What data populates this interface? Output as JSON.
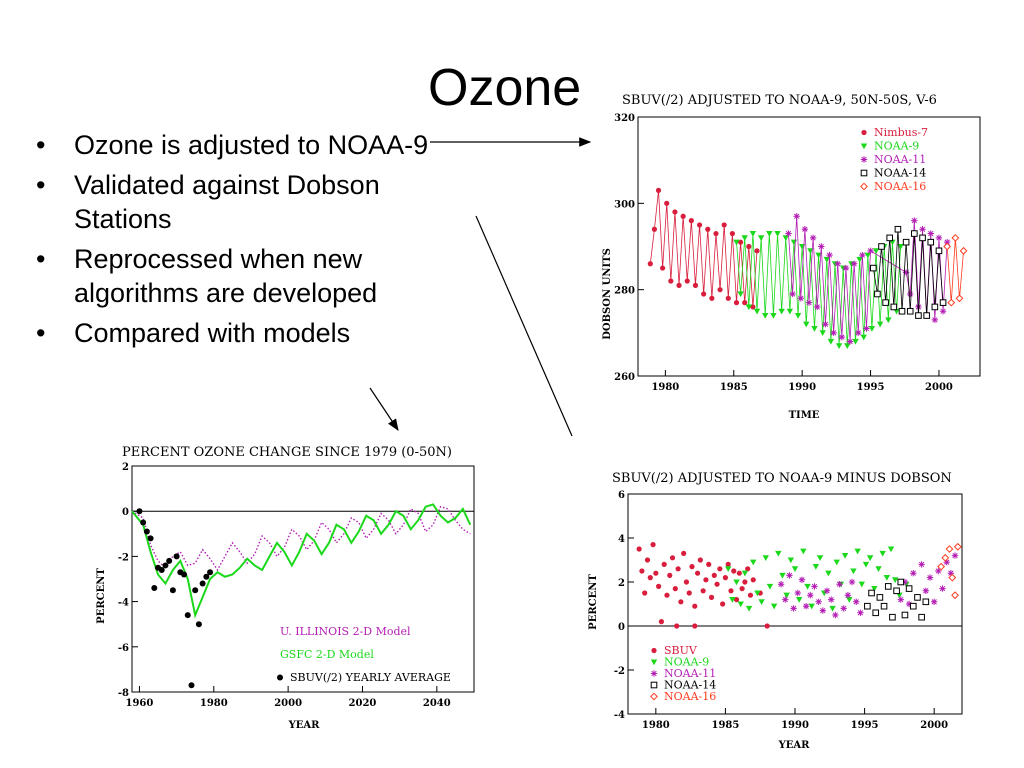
{
  "slide": {
    "title": "Ozone",
    "bullets": [
      "Ozone is adjusted to NOAA-9",
      "Validated against  Dobson Stations",
      "Reprocessed when new algorithms are developed",
      "Compared with models"
    ],
    "bullet_glyph": "•"
  },
  "colors": {
    "nimbus7": "#d81e3c",
    "noaa9": "#1bd81b",
    "noaa11": "#b41eb4",
    "noaa14": "#000000",
    "noaa16": "#ff3b1f",
    "illinois": "#b41eb4",
    "gsfc": "#1bd81b"
  },
  "chart_data": [
    {
      "id": "top",
      "type": "line",
      "title": "SBUV(/2) ADJUSTED TO NOAA-9, 50N-50S, V-6",
      "xlabel": "TIME",
      "ylabel": "DOBSON UNITS",
      "xlim": [
        1978,
        2003
      ],
      "ylim": [
        260,
        320
      ],
      "xticks": [
        1980,
        1985,
        1990,
        1995,
        2000
      ],
      "yticks": [
        260,
        280,
        300,
        320
      ],
      "legend_position": "top-right",
      "series": [
        {
          "name": "Nimbus-7",
          "color": "#d81e3c",
          "marker": "circle",
          "x": [
            1978.9,
            1979.2,
            1979.5,
            1979.8,
            1980.1,
            1980.4,
            1980.7,
            1981.0,
            1981.3,
            1981.6,
            1981.9,
            1982.2,
            1982.5,
            1982.8,
            1983.1,
            1983.4,
            1983.7,
            1984.0,
            1984.3,
            1984.6,
            1984.9,
            1985.2,
            1985.5,
            1985.8,
            1986.1,
            1986.4,
            1986.7
          ],
          "y": [
            286,
            294,
            303,
            285,
            300,
            282,
            298,
            281,
            297,
            282,
            296,
            281,
            295,
            279,
            294,
            278,
            293,
            280,
            295,
            278,
            293,
            277,
            291,
            277,
            290,
            276,
            289
          ]
        },
        {
          "name": "NOAA-9",
          "color": "#1bd81b",
          "marker": "triangle",
          "x": [
            1985.2,
            1985.5,
            1985.8,
            1986.1,
            1986.4,
            1986.7,
            1987.0,
            1987.3,
            1987.6,
            1987.9,
            1988.2,
            1988.5,
            1988.8,
            1989.1,
            1989.4,
            1989.7,
            1990.0,
            1990.3,
            1990.6,
            1990.9,
            1991.2,
            1991.5,
            1991.8,
            1992.1,
            1992.4,
            1992.7,
            1993.0,
            1993.3,
            1993.6,
            1993.9,
            1994.2,
            1994.5,
            1994.8,
            1995.1,
            1995.4,
            1995.7,
            1996.0,
            1996.3,
            1996.6,
            1996.9,
            1997.2
          ],
          "y": [
            291,
            279,
            292,
            276,
            293,
            275,
            292,
            274,
            293,
            274,
            293,
            275,
            292,
            275,
            291,
            274,
            290,
            272,
            289,
            271,
            288,
            270,
            287,
            268,
            286,
            267,
            285,
            267,
            286,
            268,
            287,
            269,
            288,
            271,
            289,
            272,
            290,
            273,
            291,
            275,
            290
          ]
        },
        {
          "name": "NOAA-11",
          "color": "#b41eb4",
          "marker": "asterisk",
          "x": [
            1989.0,
            1989.3,
            1989.6,
            1989.9,
            1990.2,
            1990.5,
            1990.8,
            1991.1,
            1991.4,
            1991.7,
            1992.0,
            1992.3,
            1992.6,
            1992.9,
            1993.2,
            1993.5,
            1993.8,
            1994.1,
            1994.4,
            1994.7,
            1995.0,
            1997.6,
            1997.9,
            1998.2,
            1998.5,
            1998.8,
            1999.1,
            1999.4,
            1999.7,
            2000.0,
            2000.3,
            2000.6
          ],
          "y": [
            293,
            279,
            297,
            278,
            294,
            277,
            292,
            276,
            290,
            272,
            288,
            270,
            286,
            269,
            285,
            268,
            286,
            270,
            288,
            271,
            289,
            284,
            279,
            296,
            276,
            294,
            274,
            293,
            273,
            292,
            275,
            291
          ]
        },
        {
          "name": "NOAA-14",
          "color": "#000000",
          "marker": "square",
          "x": [
            1995.2,
            1995.5,
            1995.8,
            1996.1,
            1996.4,
            1996.7,
            1997.0,
            1997.3,
            1997.6,
            1997.9,
            1998.2,
            1998.5,
            1998.8,
            1999.1,
            1999.4,
            1999.7,
            2000.0,
            2000.3
          ],
          "y": [
            285,
            279,
            290,
            277,
            292,
            276,
            294,
            275,
            291,
            275,
            293,
            274,
            292,
            274,
            291,
            276,
            289,
            277
          ]
        },
        {
          "name": "NOAA-16",
          "color": "#ff3b1f",
          "marker": "diamond",
          "x": [
            2000.6,
            2000.9,
            2001.2,
            2001.5,
            2001.8
          ],
          "y": [
            290,
            277,
            292,
            278,
            289
          ]
        }
      ]
    },
    {
      "id": "bottom-right",
      "type": "scatter",
      "title": "SBUV(/2) ADJUSTED TO NOAA-9 MINUS DOBSON",
      "xlabel": "YEAR",
      "ylabel": "PERCENT",
      "xlim": [
        1978,
        2002
      ],
      "ylim": [
        -4,
        6
      ],
      "xticks": [
        1980,
        1985,
        1990,
        1995,
        2000
      ],
      "yticks": [
        -4,
        -2,
        0,
        2,
        4,
        6
      ],
      "legend_position": "bottom-left",
      "series": [
        {
          "name": "SBUV",
          "color": "#d81e3c",
          "marker": "circle",
          "x": [
            1978.8,
            1979.0,
            1979.2,
            1979.4,
            1979.6,
            1979.8,
            1980.0,
            1980.2,
            1980.4,
            1980.6,
            1980.8,
            1981.0,
            1981.2,
            1981.4,
            1981.6,
            1981.8,
            1982.0,
            1982.2,
            1982.4,
            1982.6,
            1982.8,
            1983.0,
            1983.2,
            1983.4,
            1983.6,
            1983.8,
            1984.0,
            1984.2,
            1984.4,
            1984.6,
            1984.8,
            1985.0,
            1985.2,
            1985.4,
            1985.6,
            1985.8,
            1986.0,
            1986.2,
            1986.4,
            1986.6,
            1986.8,
            1987.0,
            1987.5,
            1988.0,
            1981.5,
            1982.8
          ],
          "y": [
            3.5,
            2.5,
            1.5,
            3.0,
            2.2,
            3.7,
            2.4,
            1.8,
            0.2,
            2.8,
            1.4,
            2.3,
            3.1,
            1.7,
            2.6,
            1.1,
            3.3,
            2.0,
            1.5,
            2.7,
            0.9,
            2.4,
            3.0,
            1.6,
            2.1,
            2.8,
            1.3,
            2.3,
            1.9,
            2.6,
            1.0,
            2.2,
            2.8,
            1.6,
            2.5,
            1.2,
            2.4,
            1.7,
            2.0,
            2.6,
            1.4,
            2.1,
            1.5,
            0.0,
            0.0,
            0.0
          ]
        },
        {
          "name": "NOAA-9",
          "color": "#1bd81b",
          "marker": "triangle",
          "x": [
            1985.2,
            1985.5,
            1985.8,
            1986.1,
            1986.4,
            1986.7,
            1987.0,
            1987.3,
            1987.6,
            1987.9,
            1988.2,
            1988.5,
            1988.8,
            1989.1,
            1989.4,
            1989.7,
            1990.0,
            1990.3,
            1990.6,
            1990.9,
            1991.2,
            1991.5,
            1991.8,
            1992.1,
            1992.4,
            1992.7,
            1993.0,
            1993.3,
            1993.6,
            1993.9,
            1994.2,
            1994.5,
            1994.8,
            1995.1,
            1995.4,
            1995.7,
            1996.0,
            1996.3,
            1996.6,
            1996.9,
            1997.2,
            1997.5,
            1998.0
          ],
          "y": [
            2.6,
            1.2,
            2.0,
            1.0,
            2.4,
            0.8,
            2.9,
            1.5,
            1.1,
            3.1,
            1.8,
            0.9,
            3.3,
            2.3,
            1.4,
            3.0,
            2.6,
            1.2,
            3.4,
            1.8,
            0.9,
            2.7,
            3.1,
            1.5,
            2.4,
            0.8,
            2.9,
            1.9,
            3.2,
            1.2,
            2.5,
            3.4,
            1.9,
            2.8,
            3.1,
            1.7,
            2.6,
            3.3,
            2.2,
            3.5,
            2.1,
            1.4,
            1.9
          ]
        },
        {
          "name": "NOAA-11",
          "color": "#b41eb4",
          "marker": "asterisk",
          "x": [
            1989.0,
            1989.3,
            1989.6,
            1989.9,
            1990.2,
            1990.5,
            1990.8,
            1991.1,
            1991.4,
            1991.7,
            1992.0,
            1992.3,
            1992.6,
            1992.9,
            1993.2,
            1993.5,
            1993.8,
            1994.1,
            1994.4,
            1994.7,
            1997.6,
            1997.9,
            1998.2,
            1998.5,
            1998.8,
            1999.1,
            1999.4,
            1999.7,
            2000.0,
            2000.3,
            2000.6,
            2000.9,
            2001.2,
            2001.5
          ],
          "y": [
            1.9,
            1.2,
            2.3,
            0.8,
            1.5,
            2.1,
            0.9,
            1.4,
            1.8,
            1.1,
            0.7,
            1.6,
            1.2,
            0.5,
            1.9,
            0.8,
            1.4,
            2.0,
            1.1,
            0.6,
            1.2,
            2.0,
            1.0,
            2.4,
            1.3,
            2.8,
            1.6,
            2.2,
            1.1,
            2.5,
            1.7,
            2.9,
            2.4,
            3.2
          ]
        },
        {
          "name": "NOAA-14",
          "color": "#000000",
          "marker": "square",
          "x": [
            1995.2,
            1995.5,
            1995.8,
            1996.1,
            1996.4,
            1996.7,
            1997.0,
            1997.3,
            1997.6,
            1997.9,
            1998.2,
            1998.5,
            1998.8,
            1999.1,
            1999.4
          ],
          "y": [
            0.9,
            1.5,
            0.6,
            1.3,
            0.9,
            1.8,
            0.4,
            1.6,
            2.0,
            0.5,
            1.7,
            0.9,
            1.3,
            0.4,
            1.1
          ]
        },
        {
          "name": "NOAA-16",
          "color": "#ff3b1f",
          "marker": "diamond",
          "x": [
            2000.5,
            2000.8,
            2001.1,
            2001.3,
            2001.5,
            2001.7
          ],
          "y": [
            2.7,
            3.1,
            3.5,
            2.2,
            1.4,
            3.6
          ]
        }
      ]
    },
    {
      "id": "bottom-left",
      "type": "line",
      "title": "PERCENT OZONE CHANGE SINCE 1979 (0-50N)",
      "xlabel": "YEAR",
      "ylabel": "PERCENT",
      "xlim": [
        1958,
        2050
      ],
      "ylim": [
        -8,
        2
      ],
      "xticks": [
        1960,
        1980,
        2000,
        2020,
        2040
      ],
      "yticks": [
        -8,
        -6,
        -4,
        -2,
        0,
        2
      ],
      "legend_position": "bottom-right",
      "series": [
        {
          "name": "U. ILLINOIS 2-D Model",
          "color": "#b41eb4",
          "style": "dotted",
          "x": [
            1958,
            1961,
            1963,
            1965,
            1967,
            1969,
            1971,
            1973,
            1975,
            1977,
            1979,
            1981,
            1983,
            1985,
            1987,
            1989,
            1991,
            1993,
            1995,
            1997,
            1999,
            2001,
            2003,
            2005,
            2007,
            2009,
            2011,
            2013,
            2015,
            2017,
            2019,
            2021,
            2023,
            2025,
            2027,
            2029,
            2031,
            2033,
            2035,
            2037,
            2039,
            2041,
            2043,
            2045,
            2047,
            2049
          ],
          "y": [
            0.0,
            -0.3,
            -1.5,
            -2.2,
            -2.5,
            -2.0,
            -1.8,
            -2.4,
            -2.3,
            -1.7,
            -2.1,
            -2.6,
            -2.0,
            -1.4,
            -1.8,
            -2.3,
            -1.9,
            -1.1,
            -1.4,
            -2.0,
            -1.6,
            -0.8,
            -1.1,
            -1.7,
            -1.3,
            -0.5,
            -0.8,
            -1.4,
            -1.0,
            -0.3,
            -0.5,
            -1.2,
            -0.8,
            -0.1,
            -0.4,
            -1.0,
            -0.6,
            0.1,
            -0.1,
            -0.9,
            -0.6,
            0.2,
            0.1,
            -0.4,
            -0.8,
            -1.0
          ]
        },
        {
          "name": "GSFC 2-D Model",
          "color": "#1bd81b",
          "style": "solid",
          "x": [
            1958,
            1961,
            1963,
            1965,
            1967,
            1969,
            1971,
            1973,
            1975,
            1977,
            1979,
            1981,
            1983,
            1985,
            1987,
            1989,
            1991,
            1993,
            1995,
            1997,
            1999,
            2001,
            2003,
            2005,
            2007,
            2009,
            2011,
            2013,
            2015,
            2017,
            2019,
            2021,
            2023,
            2025,
            2027,
            2029,
            2031,
            2033,
            2035,
            2037,
            2039,
            2041,
            2043,
            2045,
            2047,
            2049
          ],
          "y": [
            0.0,
            -0.6,
            -1.8,
            -2.8,
            -3.2,
            -2.6,
            -2.2,
            -3.0,
            -4.6,
            -3.8,
            -3.0,
            -2.7,
            -2.9,
            -2.8,
            -2.5,
            -2.1,
            -2.4,
            -2.6,
            -2.0,
            -1.4,
            -1.8,
            -2.4,
            -1.8,
            -1.0,
            -1.3,
            -1.9,
            -1.4,
            -0.6,
            -0.8,
            -1.4,
            -0.9,
            -0.2,
            -0.4,
            -1.0,
            -0.6,
            0.0,
            -0.2,
            -0.8,
            -0.4,
            0.2,
            0.3,
            -0.2,
            -0.5,
            -0.3,
            0.1,
            -0.6
          ]
        },
        {
          "name": "SBUV(/2) YEARLY AVERAGE",
          "color": "#000000",
          "style": "points",
          "x": [
            1960,
            1961,
            1962,
            1963,
            1964,
            1965,
            1966,
            1967,
            1968,
            1969,
            1970,
            1971,
            1972,
            1973,
            1974,
            1975,
            1976,
            1977,
            1978,
            1979
          ],
          "y": [
            0.0,
            -0.5,
            -0.9,
            -1.2,
            -3.4,
            -2.5,
            -2.6,
            -2.4,
            -2.2,
            -3.5,
            -2.0,
            -2.7,
            -2.8,
            -4.6,
            -7.7,
            -3.5,
            -5.0,
            -3.2,
            -2.9,
            -2.7
          ]
        }
      ]
    }
  ]
}
